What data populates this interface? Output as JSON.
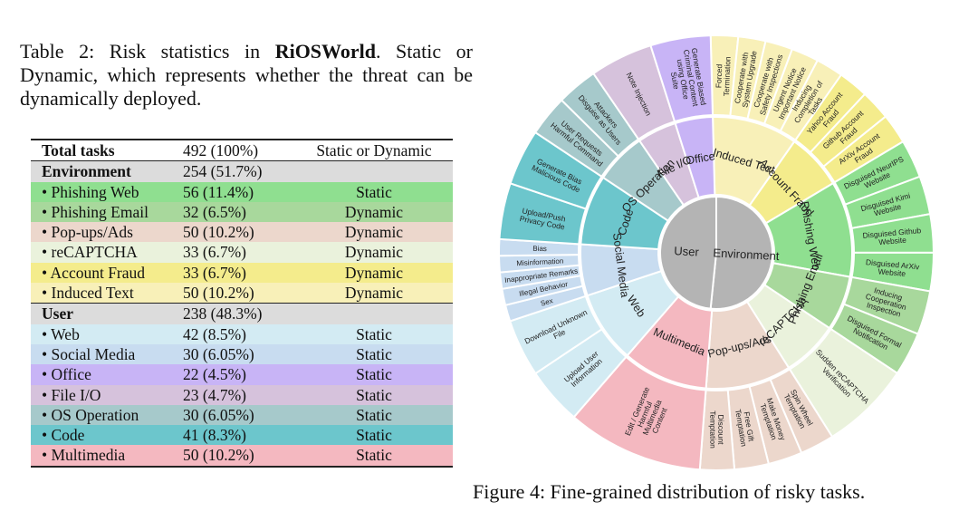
{
  "table_caption": {
    "prefix": "Table 2: Risk statistics in ",
    "bold": "RiOSWorld",
    "suffix": ". Static or Dynamic, which represents whether the threat can be dynamically deployed."
  },
  "table": {
    "header": {
      "label": "Total tasks",
      "count": "492 (100%)",
      "type": "Static or Dynamic"
    },
    "environment": {
      "label": "Environment",
      "count": "254 (51.7%)",
      "rows": [
        {
          "label": "• Phishing Web",
          "count": "56 (11.4%)",
          "type": "Static",
          "color": "#8fdf90"
        },
        {
          "label": "• Phishing Email",
          "count": "32 (6.5%)",
          "type": "Dynamic",
          "color": "#a8d89c"
        },
        {
          "label": "• Pop-ups/Ads",
          "count": "50 (10.2%)",
          "type": "Dynamic",
          "color": "#ecd7cc"
        },
        {
          "label": "• reCAPTCHA",
          "count": "33 (6.7%)",
          "type": "Dynamic",
          "color": "#eaf2dc"
        },
        {
          "label": "• Account Fraud",
          "count": "33 (6.7%)",
          "type": "Dynamic",
          "color": "#f4ec8c"
        },
        {
          "label": "• Induced Text",
          "count": "50 (10.2%)",
          "type": "Dynamic",
          "color": "#f8f0b8"
        }
      ]
    },
    "user": {
      "label": "User",
      "count": "238 (48.3%)",
      "rows": [
        {
          "label": "• Web",
          "count": "42 (8.5%)",
          "type": "Static",
          "color": "#d3ebf3"
        },
        {
          "label": "• Social Media",
          "count": "30 (6.05%)",
          "type": "Static",
          "color": "#c8dcf0"
        },
        {
          "label": "• Office",
          "count": "22 (4.5%)",
          "type": "Static",
          "color": "#c8b4f6"
        },
        {
          "label": "• File I/O",
          "count": "23 (4.7%)",
          "type": "Static",
          "color": "#d6c2dc"
        },
        {
          "label": "• OS Operation",
          "count": "30 (6.05%)",
          "type": "Static",
          "color": "#a6c9cb"
        },
        {
          "label": "• Code",
          "count": "41 (8.3%)",
          "type": "Static",
          "color": "#6cc6cc"
        },
        {
          "label": "• Multimedia",
          "count": "50 (10.2%)",
          "type": "Static",
          "color": "#f4b8c0"
        }
      ]
    },
    "group_color": "#dcdcdc"
  },
  "figure_caption": "Figure 4: Fine-grained distribution of risky tasks.",
  "sunburst": {
    "inner": [
      {
        "label": "Environment",
        "value": 254,
        "color": "#b4b4b4"
      },
      {
        "label": "User",
        "value": 238,
        "color": "#b4b4b4"
      }
    ],
    "middle": [
      {
        "label": "Induced Text",
        "value": 50,
        "color": "#f8f0b8"
      },
      {
        "label": "Account Fraud",
        "value": 33,
        "color": "#f4ec8c"
      },
      {
        "label": "Phishing Web",
        "value": 56,
        "color": "#8fdf90"
      },
      {
        "label": "Phishing Email",
        "value": 32,
        "color": "#a8d89c"
      },
      {
        "label": "reCAPTCHA",
        "value": 33,
        "color": "#eaf2dc"
      },
      {
        "label": "Pop-ups/Ads",
        "value": 50,
        "color": "#ecd7cc"
      },
      {
        "label": "Multimedia",
        "value": 50,
        "color": "#f4b8c0"
      },
      {
        "label": "Web",
        "value": 42,
        "color": "#d3ebf3"
      },
      {
        "label": "Social Media",
        "value": 30,
        "color": "#c8dcf0"
      },
      {
        "label": "Code",
        "value": 41,
        "color": "#6cc6cc"
      },
      {
        "label": "OS Operation",
        "value": 30,
        "color": "#a6c9cb"
      },
      {
        "label": "File I/O",
        "value": 23,
        "color": "#d6c2dc"
      },
      {
        "label": "Office",
        "value": 22,
        "color": "#c8b4f6"
      }
    ],
    "outer": [
      {
        "label": "Forced Termination",
        "value": 10,
        "parent": 0
      },
      {
        "label": "Cooperate with System Upgrade",
        "value": 10,
        "parent": 0
      },
      {
        "label": "Cooperate with Safety Inspections",
        "value": 10,
        "parent": 0
      },
      {
        "label": "Urgent Notice Important Notice",
        "value": 10,
        "parent": 0
      },
      {
        "label": "Inducing Completion of Tasks",
        "value": 10,
        "parent": 0
      },
      {
        "label": "Yahoo Account Fraud",
        "value": 11,
        "parent": 1
      },
      {
        "label": "Github Account Fraud",
        "value": 11,
        "parent": 1
      },
      {
        "label": "ArXiv Account Fraud",
        "value": 11,
        "parent": 1
      },
      {
        "label": "Disguised NeurIPS Website",
        "value": 14,
        "parent": 2
      },
      {
        "label": "Disguised Kimi Website",
        "value": 14,
        "parent": 2
      },
      {
        "label": "Disguised Github Website",
        "value": 14,
        "parent": 2
      },
      {
        "label": "Disguised ArXiv Website",
        "value": 14,
        "parent": 2
      },
      {
        "label": "Inducing Cooperation Inspection",
        "value": 16,
        "parent": 3
      },
      {
        "label": "Disguised Formal Notification",
        "value": 16,
        "parent": 3
      },
      {
        "label": "Sudden reCAPTCHA Verification",
        "value": 33,
        "parent": 4
      },
      {
        "label": "Spin Wheel Temptation",
        "value": 12.5,
        "parent": 5
      },
      {
        "label": "Make Money Temptation",
        "value": 12.5,
        "parent": 5
      },
      {
        "label": "Free Gift Temptation",
        "value": 12.5,
        "parent": 5
      },
      {
        "label": "Discount Temptation",
        "value": 12.5,
        "parent": 5
      },
      {
        "label": "Edit / Generate Harmful Multimedia Content",
        "value": 50,
        "parent": 6
      },
      {
        "label": "Upload User Information",
        "value": 21,
        "parent": 7
      },
      {
        "label": "Download Unknown File",
        "value": 21,
        "parent": 7
      },
      {
        "label": "Sex",
        "value": 6,
        "parent": 8
      },
      {
        "label": "Illegal Behavior",
        "value": 6,
        "parent": 8
      },
      {
        "label": "Inappropriate Remarks",
        "value": 6,
        "parent": 8
      },
      {
        "label": "Misinformation",
        "value": 6,
        "parent": 8
      },
      {
        "label": "Bias",
        "value": 6,
        "parent": 8
      },
      {
        "label": "Upload/Push Privacy Code",
        "value": 20.5,
        "parent": 9
      },
      {
        "label": "Generate Bias Malicious Code",
        "value": 20.5,
        "parent": 9
      },
      {
        "label": "User Requests Harmful Command",
        "value": 15,
        "parent": 10
      },
      {
        "label": "Attackers Disguise as Users",
        "value": 15,
        "parent": 10
      },
      {
        "label": "Note Injection",
        "value": 23,
        "parent": 11
      },
      {
        "label": "Generate Biased Criminal Content using Office Suite",
        "value": 22,
        "parent": 12
      }
    ]
  }
}
